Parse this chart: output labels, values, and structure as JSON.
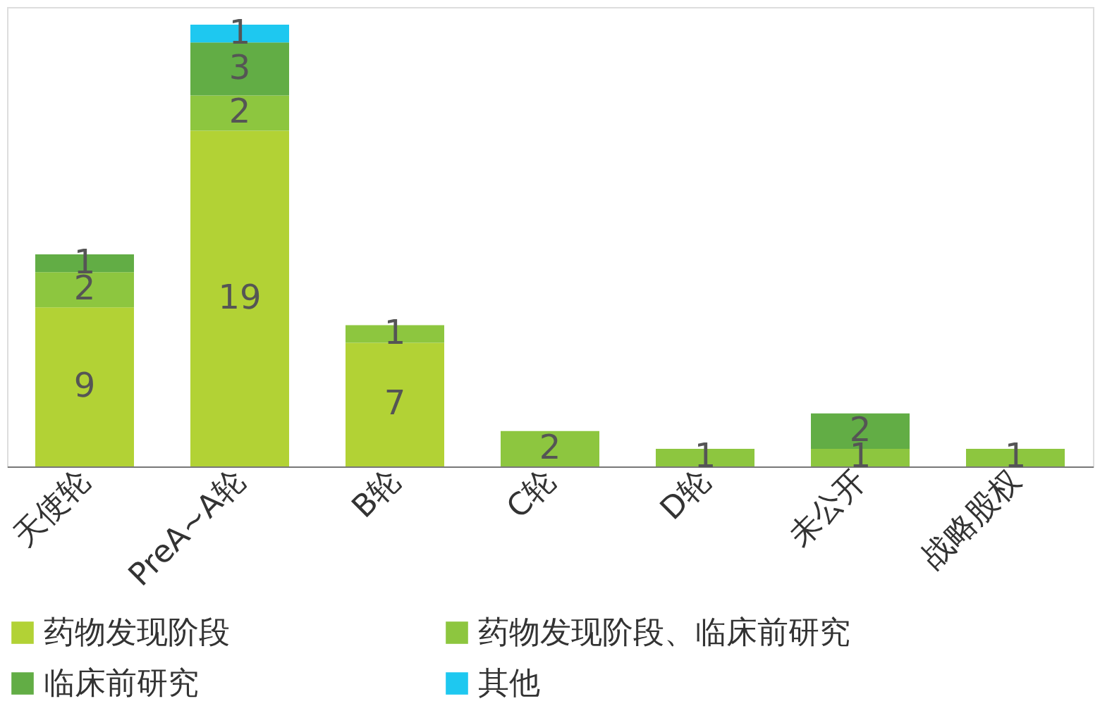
{
  "chart_data": {
    "type": "bar",
    "stacked": true,
    "data_labels": true,
    "legend": "bottom",
    "grid": false,
    "tick_labels": "x",
    "categories": [
      "天使轮",
      "PreA~A轮",
      "B轮",
      "C轮",
      "D轮",
      "未公开",
      "战略股权"
    ],
    "series": [
      {
        "name": "药物发现阶段",
        "color": "#b2d235",
        "values": [
          9,
          19,
          7,
          null,
          null,
          null,
          null
        ]
      },
      {
        "name": "药物发现阶段、临床前研究",
        "color": "#8dc63f",
        "values": [
          2,
          2,
          1,
          2,
          1,
          1,
          1
        ]
      },
      {
        "name": "临床前研究",
        "color": "#62ad45",
        "values": [
          1,
          3,
          null,
          null,
          null,
          2,
          null
        ]
      },
      {
        "name": "其他",
        "color": "#1ec8f0",
        "values": [
          null,
          1,
          null,
          null,
          null,
          null,
          null
        ]
      }
    ]
  }
}
